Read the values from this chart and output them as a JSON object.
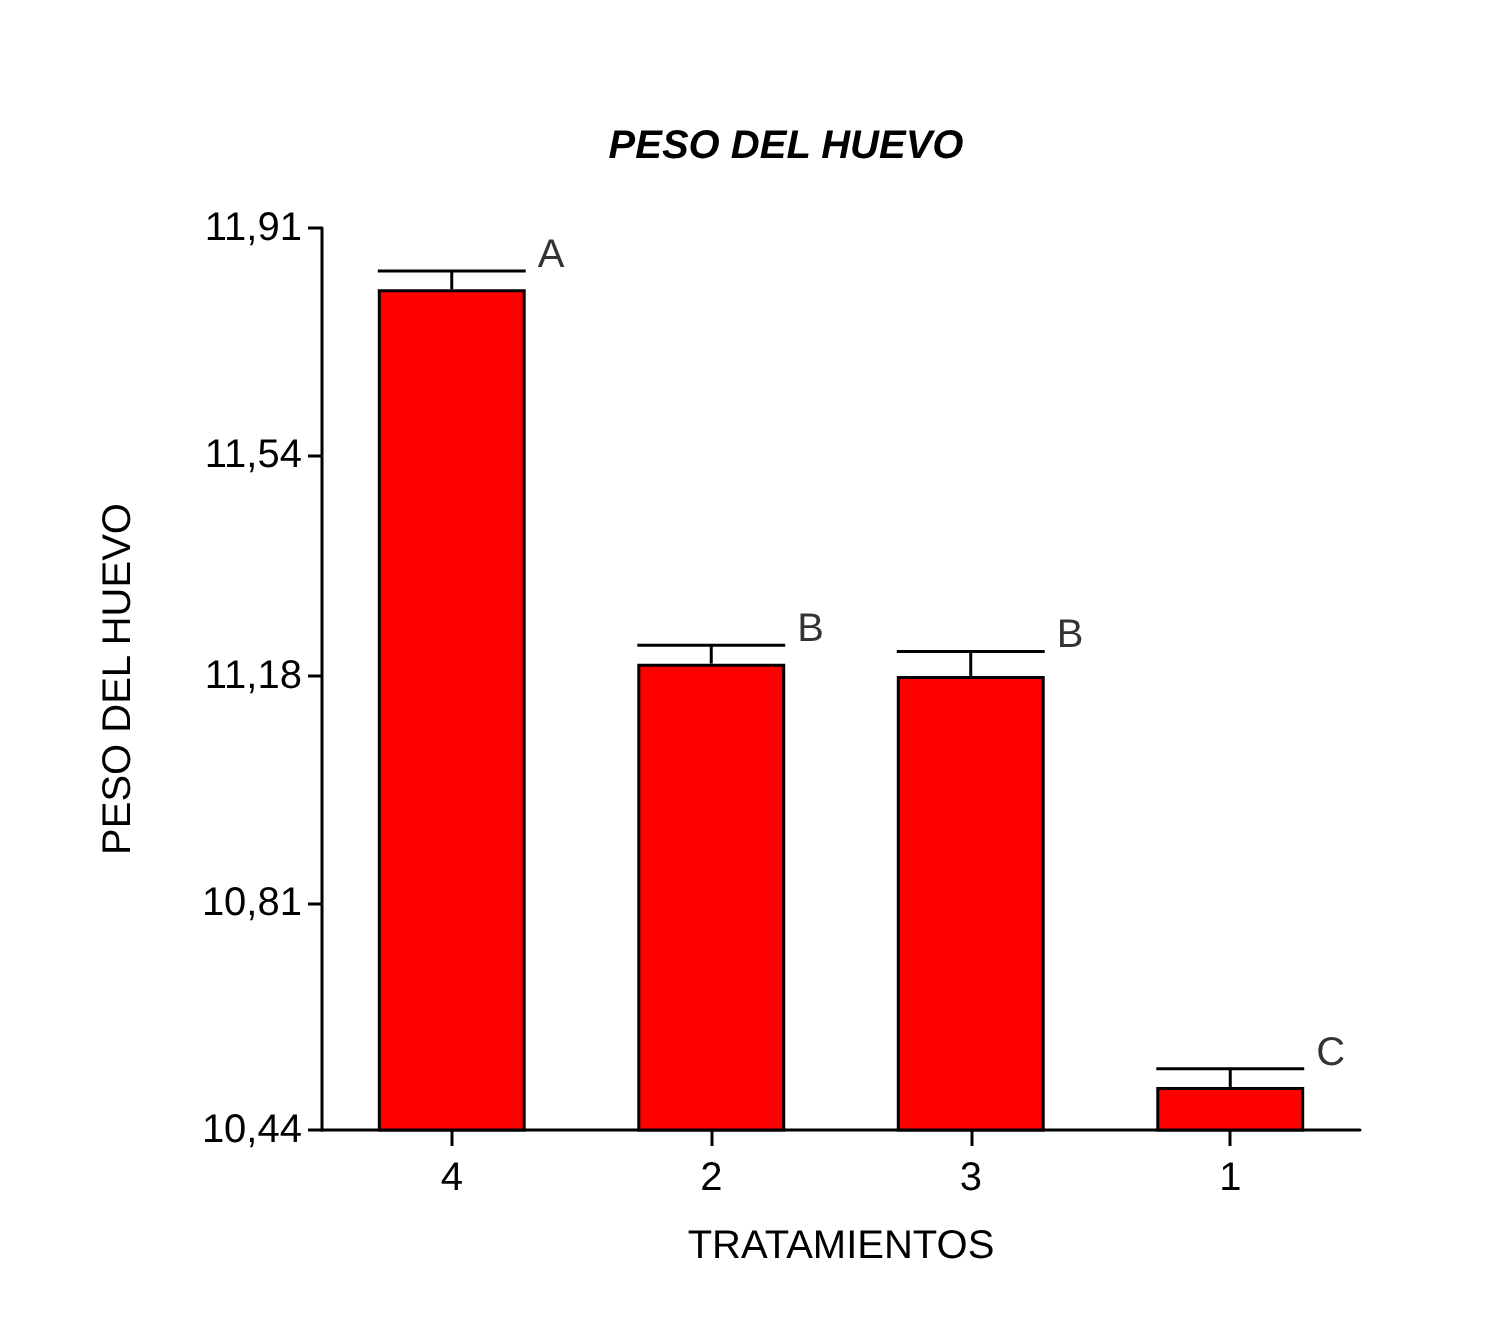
{
  "chart_data": {
    "type": "bar",
    "title": "PESO DEL HUEVO",
    "xlabel": "TRATAMIENTOS",
    "ylabel": "PESO DEL HUEVO",
    "categories": [
      "4",
      "2",
      "3",
      "1"
    ],
    "values": [
      11.81,
      11.2,
      11.18,
      10.51
    ],
    "errors": [
      [
        11.81,
        11.84
      ],
      [
        11.2,
        11.23
      ],
      [
        11.18,
        11.22
      ],
      [
        10.51,
        10.54
      ]
    ],
    "color": "#ff0000",
    "ylim": [
      10.44,
      11.91
    ],
    "yticks": [
      {
        "value": 10.44,
        "label": "10,44"
      },
      {
        "value": 10.81,
        "label": "10,81"
      },
      {
        "value": 11.18,
        "label": "11,18"
      },
      {
        "value": 11.54,
        "label": "11,54"
      },
      {
        "value": 11.91,
        "label": "11,91"
      }
    ],
    "annotations": [
      {
        "text": "A",
        "x": "4",
        "y": 11.84
      },
      {
        "text": "B",
        "x": "2",
        "y": 11.23
      },
      {
        "text": "B",
        "x": "3",
        "y": 11.22
      },
      {
        "text": "C",
        "x": "1",
        "y": 10.54
      }
    ],
    "data_labels": false
  }
}
